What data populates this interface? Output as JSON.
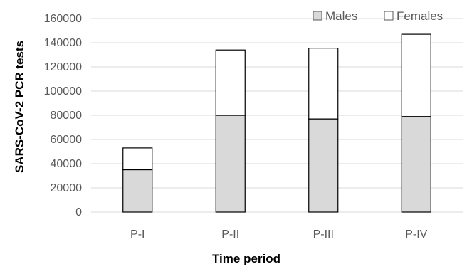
{
  "chart_data": {
    "type": "bar",
    "stacked": true,
    "categories": [
      "P-I",
      "P-II",
      "P-III",
      "P-IV"
    ],
    "series": [
      {
        "name": "Males",
        "values": [
          35000,
          80000,
          77000,
          79000
        ],
        "color": "#d9d9d9"
      },
      {
        "name": "Females",
        "values": [
          18000,
          54000,
          58500,
          68000
        ],
        "color": "#ffffff"
      }
    ],
    "xlabel": "Time period",
    "ylabel": "SARS-CoV-2 PCR tests",
    "ylim": [
      0,
      160000
    ],
    "yticks": [
      "0",
      "20000",
      "40000",
      "60000",
      "80000",
      "100000",
      "120000",
      "140000",
      "160000"
    ],
    "grid": true,
    "legend_position": "top-right"
  }
}
